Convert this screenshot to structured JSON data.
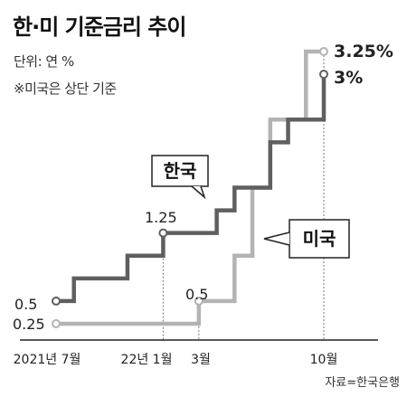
{
  "title": "한·미 기준금리 추이",
  "unit_label": "단위: 연 %",
  "note": "※미국은 상단 기준",
  "source": "자료=한국은행",
  "colors": {
    "korea": "#5f5f5f",
    "us": "#b3b3b3",
    "axis": "#222222",
    "guide": "#777777"
  },
  "chart_data": {
    "type": "line",
    "step": true,
    "x_ticks": [
      "2021년 7월",
      "22년 1월",
      "3월",
      "10월"
    ],
    "series": [
      {
        "name": "한국",
        "x": [
          "2021-07",
          "2021-08",
          "2021-11",
          "2022-01",
          "2022-04",
          "2022-05",
          "2022-07",
          "2022-08",
          "2022-10"
        ],
        "y": [
          0.5,
          0.75,
          1.0,
          1.25,
          1.5,
          1.75,
          2.25,
          2.5,
          3.0
        ],
        "start_label": "0.5",
        "mid_label": "1.25",
        "end_label": "3%"
      },
      {
        "name": "미국",
        "x": [
          "2021-07",
          "2022-03",
          "2022-05",
          "2022-06",
          "2022-07",
          "2022-09",
          "2022-10"
        ],
        "y": [
          0.25,
          0.5,
          1.0,
          1.75,
          2.5,
          3.25,
          3.25
        ],
        "start_label": "0.25",
        "mid_label": "0.5",
        "end_label": "3.25%"
      }
    ]
  }
}
